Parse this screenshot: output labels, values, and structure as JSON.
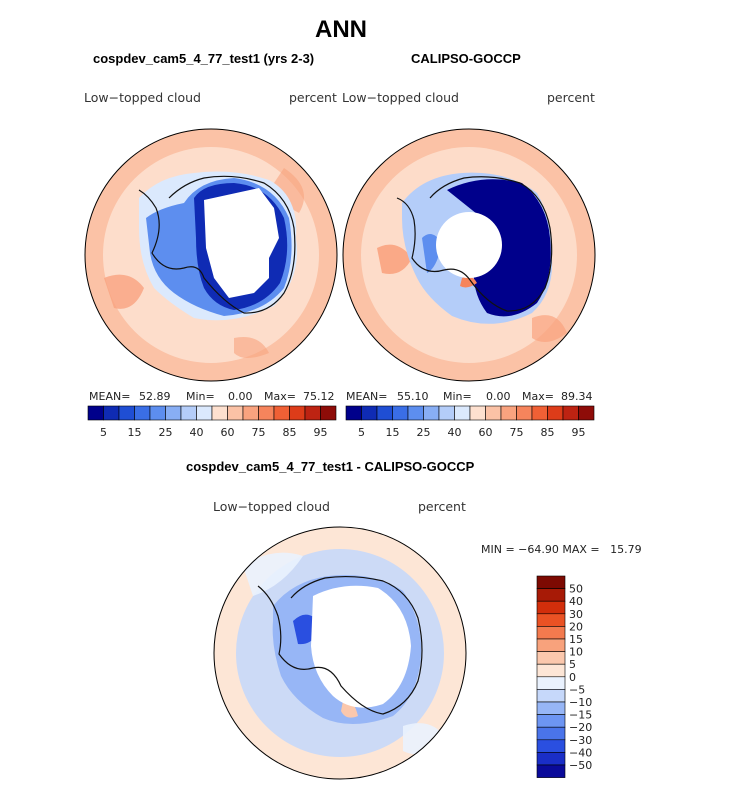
{
  "page": {
    "title": "ANN",
    "panel1_title": "cospdev_cam5_4_77_test1 (yrs 2-3)",
    "panel2_title": "CALIPSO-GOCCP",
    "panel3_title": "cospdev_cam5_4_77_test1 - CALIPSO-GOCCP"
  },
  "panels": [
    {
      "id": "model",
      "var_label": "Low−topped cloud",
      "units": "percent",
      "mean_label": "MEAN=",
      "mean": "52.89",
      "min_label": "Min=",
      "min": "0.00",
      "max_label": "Max=",
      "max": "75.12"
    },
    {
      "id": "obs",
      "var_label": "Low−topped cloud",
      "units": "percent",
      "mean_label": "MEAN=",
      "mean": "55.10",
      "min_label": "Min=",
      "min": "0.00",
      "max_label": "Max=",
      "max": "89.34"
    },
    {
      "id": "diff",
      "var_label": "Low−topped cloud",
      "units": "percent",
      "minmax_text": "MIN = −64.90 MAX =   15.79"
    }
  ],
  "colors": {
    "seq": [
      "#00008b",
      "#0f2bb4",
      "#1f4ed4",
      "#3a6ee6",
      "#5d8eef",
      "#88aef4",
      "#b4cdf9",
      "#dbe9fd",
      "#fde0cf",
      "#fbc2a6",
      "#f9a37f",
      "#f6845c",
      "#f06035",
      "#dd3c19",
      "#bd2312",
      "#8e0c08"
    ],
    "diff": [
      "#0a0a9a",
      "#1a2ec7",
      "#2a4fe0",
      "#4a74ea",
      "#6d95f2",
      "#97b6f6",
      "#c6d8fa",
      "#eaf2fe",
      "#fde6d6",
      "#fbc8ad",
      "#f8a27c",
      "#f37a4e",
      "#ea5224",
      "#d22e0b",
      "#a71a06",
      "#7d0a02"
    ]
  },
  "chart_data": [
    {
      "type": "heatmap",
      "title": "cospdev_cam5_4_77_test1 (yrs 2-3)",
      "variable": "Low−topped cloud",
      "units": "percent",
      "projection": "south polar stereographic",
      "stats": {
        "mean": 52.89,
        "min": 0.0,
        "max": 75.12
      },
      "colorbar_levels": [
        5,
        10,
        15,
        20,
        25,
        30,
        40,
        50,
        60,
        65,
        75,
        80,
        85,
        90,
        95
      ],
      "colorbar_tick_labels": [
        "5",
        "15",
        "25",
        "40",
        "60",
        "75",
        "85",
        "95"
      ]
    },
    {
      "type": "heatmap",
      "title": "CALIPSO-GOCCP",
      "variable": "Low−topped cloud",
      "units": "percent",
      "projection": "south polar stereographic",
      "stats": {
        "mean": 55.1,
        "min": 0.0,
        "max": 89.34
      },
      "colorbar_levels": [
        5,
        10,
        15,
        20,
        25,
        30,
        40,
        50,
        60,
        65,
        75,
        80,
        85,
        90,
        95
      ],
      "colorbar_tick_labels": [
        "5",
        "15",
        "25",
        "40",
        "60",
        "75",
        "85",
        "95"
      ]
    },
    {
      "type": "heatmap",
      "title": "cospdev_cam5_4_77_test1 - CALIPSO-GOCCP",
      "variable": "Low−topped cloud",
      "units": "percent",
      "projection": "south polar stereographic",
      "stats": {
        "min": -64.9,
        "max": 15.79
      },
      "colorbar_levels": [
        -50,
        -40,
        -30,
        -20,
        -15,
        -10,
        -5,
        0,
        5,
        10,
        15,
        20,
        30,
        40,
        50
      ],
      "colorbar_tick_labels": [
        "50",
        "40",
        "30",
        "20",
        "15",
        "10",
        "5",
        "0",
        "−5",
        "−10",
        "−15",
        "−20",
        "−30",
        "−40",
        "−50"
      ]
    }
  ]
}
